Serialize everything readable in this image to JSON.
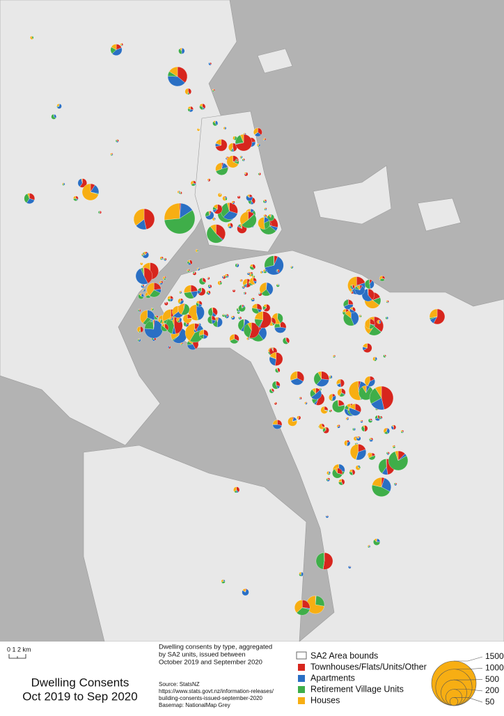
{
  "map": {
    "title": [
      "Dwelling Consents",
      "Oct 2019 to Sep 2020"
    ],
    "scale_bar": "0  1  2 km",
    "description": [
      "Dwelling consents by type, aggregated",
      "by SA2 units, issued between",
      "October 2019 and September 2020"
    ],
    "source": [
      "Source: StatsNZ",
      "https://www.stats.govt.nz/information-releases/",
      "building-consents-issued-september-2020",
      "Basemap: NationalMap Grey"
    ],
    "legend": {
      "boundary": "SA2 Area bounds",
      "types": [
        {
          "name": "Townhouses/Flats/Units/Other",
          "color": "#d7261e"
        },
        {
          "name": "Apartments",
          "color": "#2a6fc4"
        },
        {
          "name": "Retirement Village Units",
          "color": "#3fae49"
        },
        {
          "name": "Houses",
          "color": "#f7ae13"
        }
      ],
      "sizes": [
        1500,
        1000,
        500,
        200,
        50
      ]
    }
  }
}
